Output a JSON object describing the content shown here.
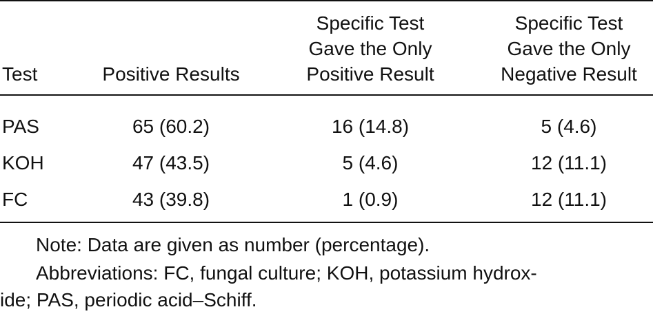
{
  "table": {
    "header": [
      "Test",
      "Positive Results",
      [
        "Specific Test",
        "Gave the Only",
        "Positive Result"
      ],
      [
        "Specific Test",
        "Gave the Only",
        "Negative Result"
      ]
    ],
    "rows": [
      [
        "PAS",
        "65 (60.2)",
        "16 (14.8)",
        "5 (4.6)"
      ],
      [
        "KOH",
        "47 (43.5)",
        "5 (4.6)",
        "12 (11.1)"
      ],
      [
        "FC",
        "43 (39.8)",
        "1 (0.9)",
        "12 (11.1)"
      ]
    ]
  },
  "notes": [
    "Note: Data are given as number (percentage).",
    "Abbreviations: FC, fungal culture; KOH, potassium hydrox-",
    "ide; PAS, periodic acid–Schiff."
  ]
}
